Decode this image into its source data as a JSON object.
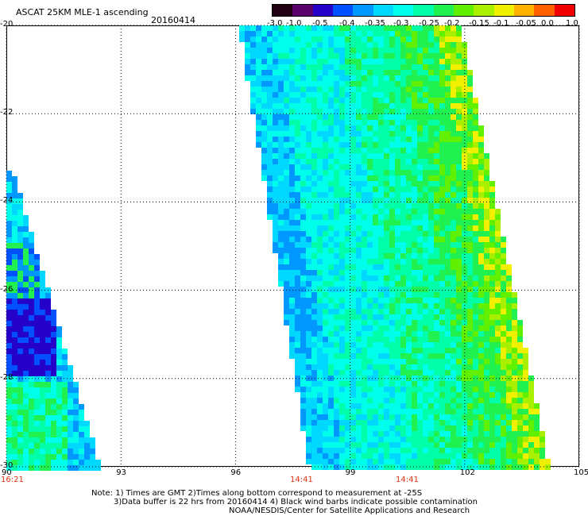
{
  "header": {
    "title": "ASCAT 25KM MLE-1 ascending",
    "date": "20160414"
  },
  "colorbar": {
    "labels": [
      "-3.0",
      "-1.0",
      "-0.5",
      "-0.4",
      "-0.35",
      "-0.3",
      "-0.25",
      "-0.2",
      "-0.15",
      "-0.1",
      "-0.05",
      "0.0",
      "1.0"
    ],
    "colors": [
      "#200010",
      "#5a006a",
      "#2400c8",
      "#0050ff",
      "#0098ff",
      "#00d8ff",
      "#00ffea",
      "#00ffa8",
      "#20f050",
      "#60f000",
      "#a8f000",
      "#f0f000",
      "#ffb000",
      "#ff6000",
      "#f00000"
    ]
  },
  "axes": {
    "y_ticks": [
      "-20",
      "-22",
      "-24",
      "-26",
      "-28",
      "-30"
    ],
    "x_ticks": [
      "90",
      "93",
      "96",
      "99",
      "102",
      "105"
    ],
    "lat_range": [
      -30,
      -20
    ],
    "lon_range": [
      90,
      105
    ]
  },
  "times": [
    "16:21",
    "14:41",
    "14:41"
  ],
  "notes": {
    "line1": "Note: 1) Times are GMT 2)Times along bottom correspond to measurement at -25S",
    "line2": "3)Data buffer is 22 hrs from 20160414 4) Black wind barbs indicate possible contamination",
    "line3": "NOAA/NESDIS/Center for Satellite Applications and Research"
  }
}
